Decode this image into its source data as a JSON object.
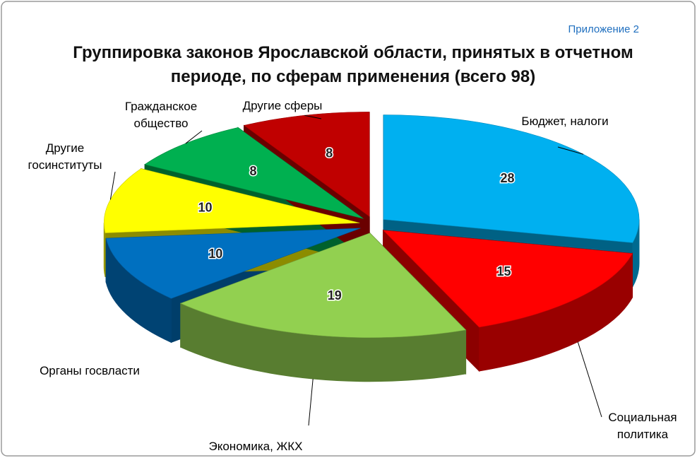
{
  "chart_data": {
    "type": "pie3d",
    "title": "Группировка законов Ярославской области, принятых в отчетном периоде, по сферам применения (всего 98)",
    "annotation": "Приложение 2",
    "categories": [
      "Бюджет, налоги",
      "Социальная политика",
      "Экономика, ЖКХ",
      "Органы госвласти",
      "Другие госинституты",
      "Гражданское общество",
      "Другие сферы"
    ],
    "values": [
      28,
      15,
      19,
      10,
      10,
      8,
      8
    ],
    "colors": [
      "#00b0f0",
      "#ff0000",
      "#92d050",
      "#0070c0",
      "#ffff00",
      "#00b050",
      "#c00000"
    ]
  }
}
